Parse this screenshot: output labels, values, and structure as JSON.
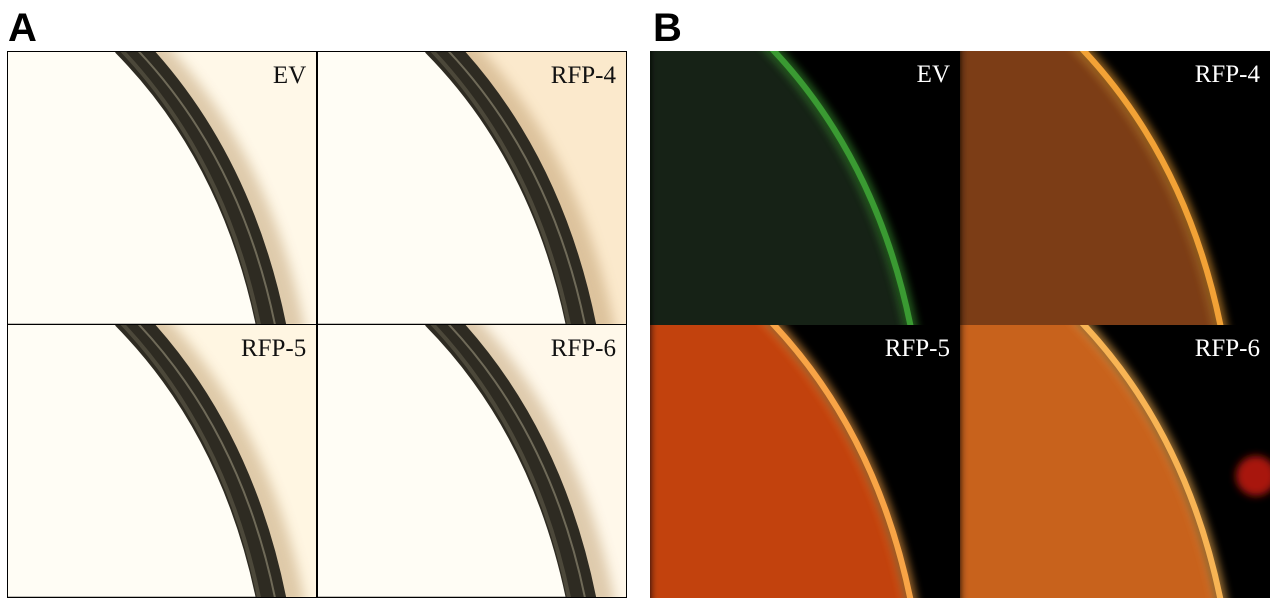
{
  "panels": [
    {
      "label": "A",
      "images": [
        {
          "label": "EV"
        },
        {
          "label": "RFP-4"
        },
        {
          "label": "RFP-5"
        },
        {
          "label": "RFP-6"
        }
      ]
    },
    {
      "label": "B",
      "images": [
        {
          "label": "EV"
        },
        {
          "label": "RFP-4"
        },
        {
          "label": "RFP-5"
        },
        {
          "label": "RFP-6"
        }
      ]
    }
  ]
}
